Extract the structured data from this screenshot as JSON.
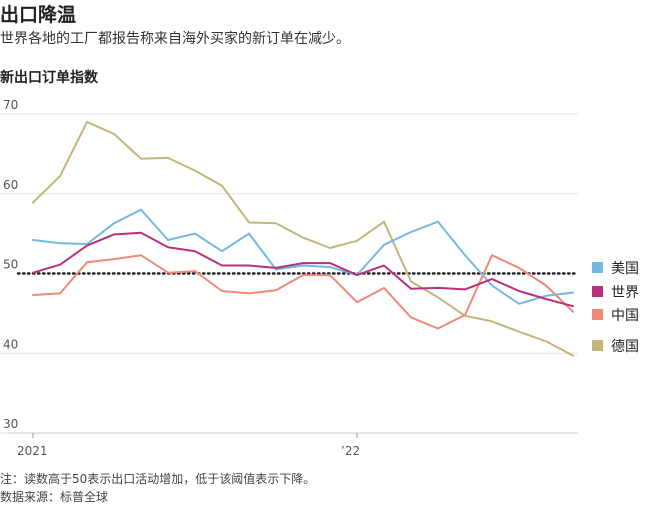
{
  "header": {
    "title": "出口降温",
    "subtitle": "世界各地的工厂都报告称来自海外买家的新订单在减少。"
  },
  "footer": {
    "note": "注：读数高于50表示出口活动增加，低于该阈值表示下降。",
    "source": "数据来源：标普全球"
  },
  "chart_data": {
    "type": "line",
    "title": "新出口订单指数",
    "xlabel": "",
    "ylabel": "",
    "x": [
      "2021-01",
      "2021-02",
      "2021-03",
      "2021-04",
      "2021-05",
      "2021-06",
      "2021-07",
      "2021-08",
      "2021-09",
      "2021-10",
      "2021-11",
      "2021-12",
      "2022-01",
      "2022-02",
      "2022-03",
      "2022-04",
      "2022-05",
      "2022-06",
      "2022-07",
      "2022-08",
      "2022-09"
    ],
    "x_tick_labels": [
      {
        "x": "2021-01",
        "label": "2021"
      },
      {
        "x": "2022-01",
        "label": "’22"
      }
    ],
    "ylim": [
      30,
      72
    ],
    "yticks": [
      30,
      40,
      50,
      60,
      70
    ],
    "reference_line": 50,
    "grid": "horizontal",
    "legend_position": "right",
    "series": [
      {
        "name": "美国",
        "color": "#74b9e0",
        "values": [
          54.2,
          53.8,
          53.7,
          56.3,
          58.0,
          54.2,
          55.0,
          52.8,
          55.0,
          50.5,
          51.0,
          50.8,
          49.8,
          53.6,
          55.2,
          56.5,
          52.3,
          48.5,
          46.2,
          47.2,
          47.6
        ]
      },
      {
        "name": "世界",
        "color": "#b8317a",
        "values": [
          50.1,
          51.1,
          53.5,
          54.9,
          55.1,
          53.3,
          52.8,
          51.0,
          51.0,
          50.7,
          51.3,
          51.3,
          49.8,
          51.0,
          48.1,
          48.2,
          48.0,
          49.3,
          47.8,
          46.8,
          45.9
        ]
      },
      {
        "name": "中国",
        "color": "#f08a78",
        "values": [
          47.3,
          47.5,
          51.4,
          51.8,
          52.3,
          50.1,
          50.3,
          47.8,
          47.5,
          47.9,
          49.8,
          49.8,
          46.4,
          48.2,
          44.5,
          43.1,
          44.8,
          52.3,
          50.7,
          48.5,
          45.2
        ]
      },
      {
        "name": "德国",
        "color": "#c2b67a",
        "values": [
          58.9,
          62.2,
          69.0,
          67.5,
          64.4,
          64.5,
          62.9,
          61.0,
          56.4,
          56.3,
          54.5,
          53.2,
          54.1,
          56.5,
          49.0,
          47.0,
          44.7,
          44.0,
          42.7,
          41.5,
          39.7
        ]
      }
    ],
    "legend_order": [
      "美国",
      "世界",
      "中国",
      "德国"
    ]
  }
}
